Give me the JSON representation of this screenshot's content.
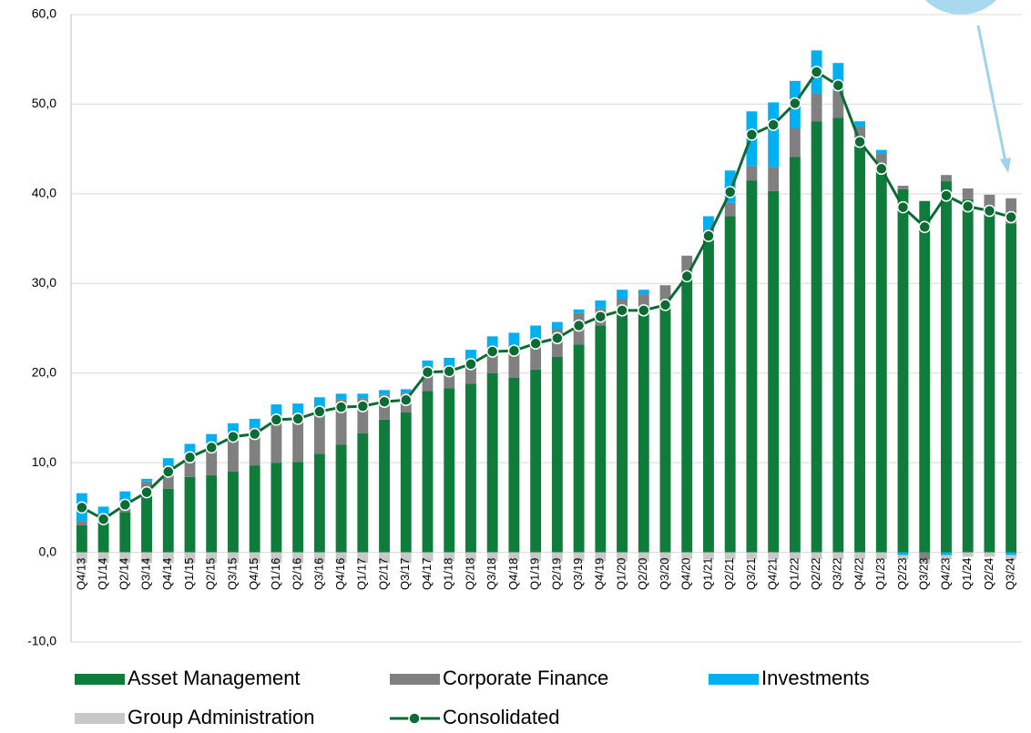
{
  "chart_data": {
    "type": "bar",
    "stacked": true,
    "categories": [
      "Q4/13",
      "Q1/14",
      "Q2/14",
      "Q3/14",
      "Q4/14",
      "Q1/15",
      "Q2/15",
      "Q3/15",
      "Q4/15",
      "Q1/16",
      "Q2/16",
      "Q3/16",
      "Q4/16",
      "Q1/17",
      "Q2/17",
      "Q3/17",
      "Q4/17",
      "Q1/18",
      "Q2/18",
      "Q3/18",
      "Q4/18",
      "Q1/19",
      "Q2/19",
      "Q3/19",
      "Q4/19",
      "Q1/20",
      "Q2/20",
      "Q3/20",
      "Q4/20",
      "Q1/21",
      "Q2/21",
      "Q3/21",
      "Q4/21",
      "Q1/22",
      "Q2/22",
      "Q3/22",
      "Q4/22",
      "Q1/23",
      "Q2/23",
      "Q3/23",
      "Q4/23",
      "Q1/24",
      "Q2/24",
      "Q3/24"
    ],
    "series": [
      {
        "name": "Asset Management",
        "color": "#107c3c",
        "values": [
          3.0,
          3.4,
          4.5,
          6.5,
          7.1,
          8.4,
          8.6,
          9.0,
          9.7,
          10.0,
          10.1,
          11.0,
          12.0,
          13.3,
          14.8,
          15.6,
          18.0,
          18.3,
          18.8,
          20.0,
          19.5,
          20.4,
          21.8,
          23.2,
          25.3,
          26.5,
          26.8,
          27.6,
          31.2,
          34.8,
          37.5,
          41.5,
          40.3,
          44.1,
          48.1,
          48.5,
          45.3,
          43.0,
          40.5,
          39.2,
          41.4,
          39.4,
          38.4,
          36.7
        ]
      },
      {
        "name": "Corporate Finance",
        "color": "#808080",
        "values": [
          0.5,
          0.3,
          0.7,
          1.4,
          2.6,
          2.4,
          3.5,
          4.4,
          4.2,
          5.4,
          5.4,
          5.2,
          5.1,
          3.9,
          2.8,
          2.2,
          2.7,
          2.4,
          2.7,
          2.9,
          3.6,
          3.4,
          3.1,
          3.5,
          1.9,
          1.8,
          2.0,
          2.2,
          1.9,
          1.2,
          1.5,
          1.6,
          2.7,
          3.2,
          3.1,
          3.0,
          2.2,
          1.5,
          0.4,
          -0.8,
          0.7,
          1.2,
          1.5,
          2.8
        ]
      },
      {
        "name": "Investments",
        "color": "#00b0f0",
        "values": [
          3.1,
          1.4,
          1.6,
          0.3,
          0.8,
          1.3,
          1.1,
          1.0,
          1.0,
          1.1,
          1.1,
          1.1,
          0.6,
          0.5,
          0.5,
          0.4,
          0.7,
          1.0,
          1.1,
          1.2,
          1.4,
          1.5,
          0.8,
          0.4,
          0.9,
          1.0,
          0.5,
          0.0,
          0.0,
          1.5,
          3.6,
          6.1,
          7.2,
          5.3,
          4.8,
          3.1,
          0.6,
          0.4,
          -0.3,
          0.0,
          -0.3,
          0.0,
          0.0,
          -0.3
        ]
      },
      {
        "name": "Group Administration",
        "color": "#c8c8c8",
        "values": [
          -1.2,
          -1.2,
          -1.2,
          -1.2,
          -1.2,
          -1.2,
          -1.2,
          -1.2,
          -1.2,
          -1.2,
          -1.2,
          -1.2,
          -1.2,
          -1.2,
          -1.2,
          -1.2,
          -1.0,
          -1.0,
          -1.0,
          -1.0,
          -1.0,
          -1.0,
          -1.0,
          -1.0,
          -1.0,
          -1.0,
          -1.0,
          -1.0,
          -0.8,
          -0.8,
          -0.8,
          -0.8,
          -0.8,
          -0.8,
          -0.8,
          -0.8,
          -0.8,
          -0.8,
          -0.5,
          -0.5,
          -0.5,
          -0.5,
          -0.5,
          -0.5
        ]
      },
      {
        "name": "Consolidated",
        "type": "line",
        "color": "#0b6b33",
        "values": [
          5.0,
          3.7,
          5.3,
          6.7,
          9.0,
          10.6,
          11.7,
          12.9,
          13.2,
          14.8,
          14.9,
          15.7,
          16.2,
          16.3,
          16.8,
          17.0,
          20.1,
          20.2,
          21.0,
          22.4,
          22.5,
          23.3,
          23.9,
          25.3,
          26.3,
          27.0,
          27.0,
          27.6,
          30.8,
          35.3,
          40.2,
          46.6,
          47.7,
          50.1,
          53.6,
          52.1,
          45.8,
          42.8,
          38.5,
          36.3,
          39.8,
          38.6,
          38.1,
          37.4
        ]
      }
    ],
    "ylim": [
      -10,
      60
    ],
    "yticks": [
      {
        "value": -10,
        "label": "-10,0"
      },
      {
        "value": 0,
        "label": "0,0"
      },
      {
        "value": 10,
        "label": "10,0"
      },
      {
        "value": 20,
        "label": "20,0"
      },
      {
        "value": 30,
        "label": "30,0"
      },
      {
        "value": 40,
        "label": "40,0"
      },
      {
        "value": 50,
        "label": "50,0"
      },
      {
        "value": 60,
        "label": "60,0"
      }
    ],
    "grid": true
  }
}
